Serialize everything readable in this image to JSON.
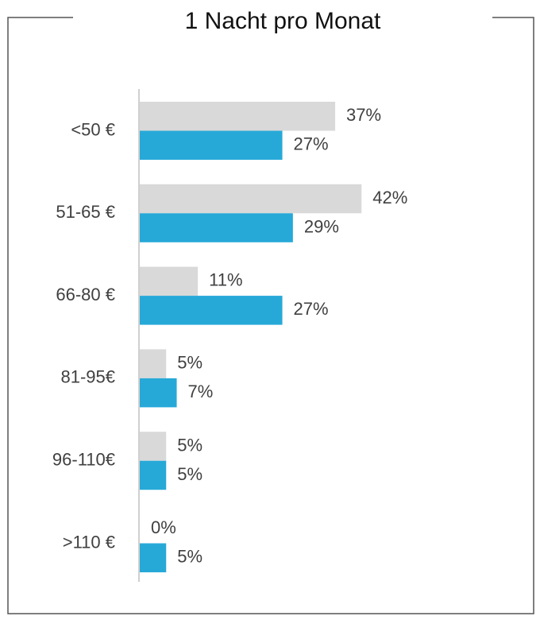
{
  "chart_data": {
    "type": "barh",
    "title": "1 Nacht pro Monat",
    "categories": [
      "<50 €",
      "51-65 €",
      "66-80 €",
      "81-95€",
      "96-110€",
      ">110 €"
    ],
    "series": [
      {
        "color": "#d9d9d9",
        "values": [
          37,
          42,
          11,
          5,
          5,
          0
        ],
        "value_labels": [
          "37%",
          "42%",
          "11%",
          "5%",
          "5%",
          "0%"
        ]
      },
      {
        "color": "#27a9d8",
        "values": [
          27,
          29,
          27,
          7,
          5,
          5
        ],
        "value_labels": [
          "27%",
          "29%",
          "27%",
          "7%",
          "5%",
          "5%"
        ]
      }
    ]
  }
}
